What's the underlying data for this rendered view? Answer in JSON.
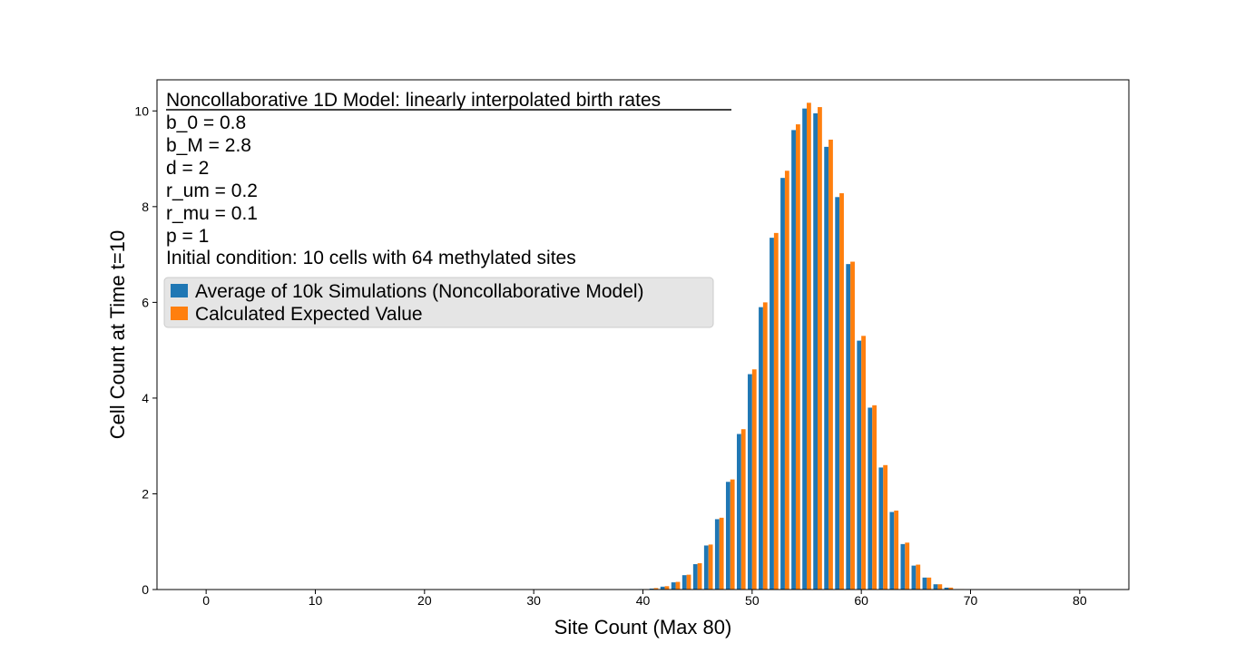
{
  "chart_data": {
    "type": "bar",
    "xlabel": "Site Count (Max 80)",
    "ylabel": "Cell Count at Time t=10",
    "xlim": [
      -4.5,
      84.5
    ],
    "ylim": [
      0,
      10.65
    ],
    "xticks": [
      0,
      10,
      20,
      30,
      40,
      50,
      60,
      70,
      80
    ],
    "yticks": [
      0,
      2,
      4,
      6,
      8,
      10
    ],
    "colors": {
      "sim": "#1f77b4",
      "calc": "#ff7f0e"
    },
    "legend_position": "upper-left",
    "annotation": {
      "title": "Noncollaborative 1D Model: linearly interpolated birth rates",
      "lines": [
        "b_0 = 0.8",
        "b_M = 2.8",
        "d = 2",
        "r_um = 0.2",
        "r_mu = 0.1",
        "p = 1",
        "Initial condition: 10 cells with 64 methylated sites"
      ]
    },
    "x": [
      40,
      41,
      42,
      43,
      44,
      45,
      46,
      47,
      48,
      49,
      50,
      51,
      52,
      53,
      54,
      55,
      56,
      57,
      58,
      59,
      60,
      61,
      62,
      63,
      64,
      65,
      66,
      67,
      68,
      69
    ],
    "series": [
      {
        "name": "Average of 10k Simulations (Noncollaborative Model)",
        "values": [
          0.01,
          0.02,
          0.06,
          0.15,
          0.3,
          0.53,
          0.92,
          1.47,
          2.25,
          3.25,
          4.5,
          5.9,
          7.35,
          8.6,
          9.6,
          10.05,
          9.95,
          9.25,
          8.2,
          6.8,
          5.2,
          3.8,
          2.55,
          1.62,
          0.95,
          0.5,
          0.25,
          0.11,
          0.04,
          0.01
        ]
      },
      {
        "name": "Calculated Expected Value",
        "values": [
          0.01,
          0.03,
          0.07,
          0.16,
          0.31,
          0.55,
          0.94,
          1.5,
          2.3,
          3.35,
          4.6,
          6.0,
          7.45,
          8.75,
          9.72,
          10.17,
          10.08,
          9.4,
          8.28,
          6.85,
          5.3,
          3.85,
          2.6,
          1.65,
          0.98,
          0.52,
          0.25,
          0.11,
          0.04,
          0.01
        ]
      }
    ]
  }
}
